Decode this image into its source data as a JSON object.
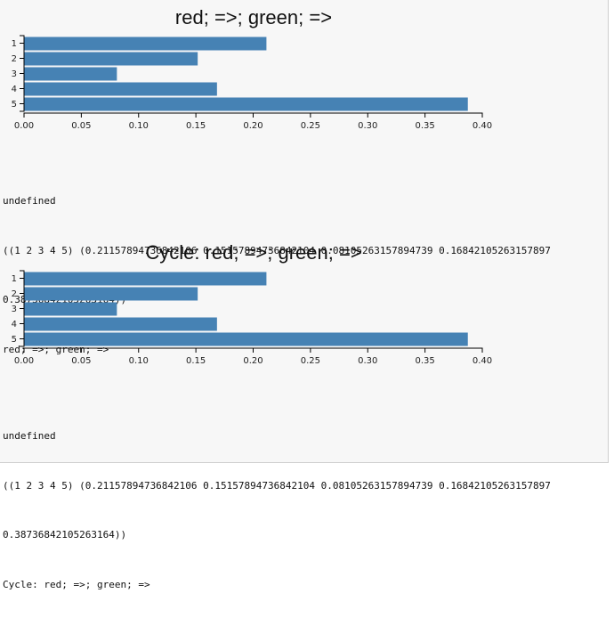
{
  "chart_data": [
    {
      "type": "bar",
      "orientation": "horizontal",
      "title": "red; =>; green; =>",
      "categories": [
        "1",
        "2",
        "3",
        "4",
        "5"
      ],
      "values": [
        0.21157894736842106,
        0.15157894736842104,
        0.08105263157894739,
        0.16842105263157897,
        0.38736842105263164
      ],
      "xlim": [
        0,
        0.4
      ],
      "x_ticks": [
        "0.00",
        "0.05",
        "0.10",
        "0.15",
        "0.20",
        "0.25",
        "0.30",
        "0.35",
        "0.40"
      ],
      "color": "#4682b4",
      "grid": false
    },
    {
      "type": "bar",
      "orientation": "horizontal",
      "title": "Cycle: red; =>; green; =>",
      "categories": [
        "1",
        "2",
        "3",
        "4",
        "5"
      ],
      "values": [
        0.21157894736842106,
        0.15157894736842104,
        0.08105263157894739,
        0.16842105263157897,
        0.38736842105263164
      ],
      "xlim": [
        0,
        0.4
      ],
      "x_ticks": [
        "0.00",
        "0.05",
        "0.10",
        "0.15",
        "0.20",
        "0.25",
        "0.30",
        "0.35",
        "0.40"
      ],
      "color": "#4682b4",
      "grid": false
    }
  ],
  "outputs": [
    {
      "line1": "undefined",
      "line2": "((1 2 3 4 5) (0.21157894736842106 0.15157894736842104 0.08105263157894739 0.16842105263157897",
      "line3": "0.38736842105263164))",
      "line4": "red; =>; green; =>"
    },
    {
      "line1": "undefined",
      "line2": "((1 2 3 4 5) (0.21157894736842106 0.15157894736842104 0.08105263157894739 0.16842105263157897",
      "line3": "0.38736842105263164))",
      "line4": "Cycle: red; =>; green; =>"
    }
  ]
}
